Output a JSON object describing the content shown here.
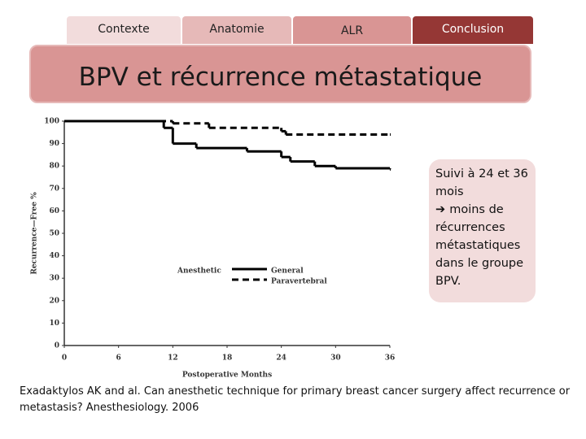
{
  "tabs": [
    "Contexte",
    "Anatomie",
    "ALR",
    "Conclusion"
  ],
  "title": "BPV et récurrence métastatique",
  "chart_data": {
    "type": "step",
    "xlabel": "Postoperative Months",
    "ylabel": "Recurrence—Free %",
    "xlim": [
      0,
      36
    ],
    "xticks": [
      0,
      6,
      12,
      18,
      24,
      30,
      36
    ],
    "ylim": [
      0,
      100
    ],
    "yticks": [
      0,
      10,
      20,
      30,
      40,
      50,
      60,
      70,
      80,
      90,
      100
    ],
    "legend_title": "Anesthetic",
    "series": [
      {
        "name": "General",
        "color": "#000000",
        "dash": false,
        "x": [
          0,
          11,
          12,
          14.6,
          20.2,
          24,
          25,
          27.7,
          30,
          36
        ],
        "values": [
          100,
          97,
          90,
          88,
          86.5,
          84,
          82,
          80,
          79,
          78.5
        ]
      },
      {
        "name": "Paravertebral",
        "color": "#000000",
        "dash": true,
        "x": [
          0,
          12,
          16,
          24,
          24.5,
          36
        ],
        "values": [
          100,
          99,
          97,
          95.5,
          94,
          94
        ]
      }
    ]
  },
  "note": {
    "line1": "Suivi à 24 et 36 mois",
    "line2": "moins de récurrences métastatiques dans le groupe BPV."
  },
  "citation": "Exadaktylos AK and al. Can anesthetic technique for primary breast cancer surgery affect recurrence or metastasis? Anesthesiology. 2006"
}
